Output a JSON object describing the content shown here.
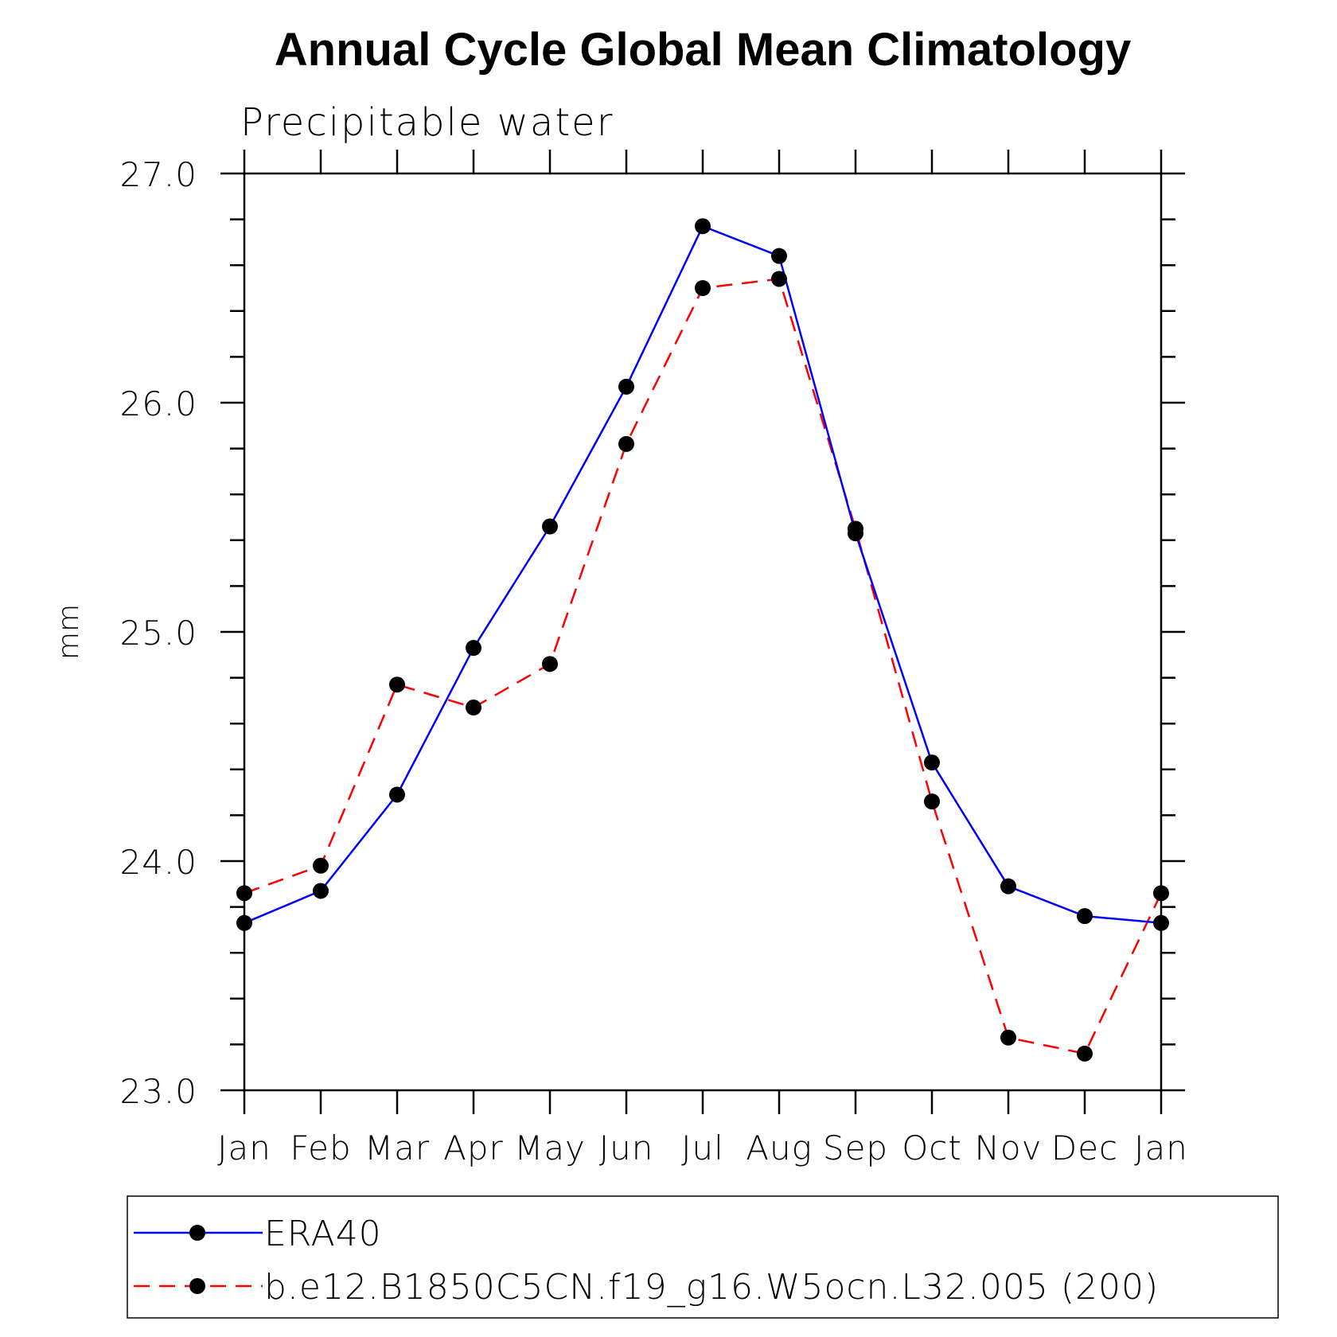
{
  "chart_data": {
    "type": "line",
    "title": "Annual Cycle Global Mean Climatology",
    "subtitle": "Precipitable water",
    "xlabel": "",
    "ylabel": "mm",
    "categories": [
      "Jan",
      "Feb",
      "Mar",
      "Apr",
      "May",
      "Jun",
      "Jul",
      "Aug",
      "Sep",
      "Oct",
      "Nov",
      "Dec",
      "Jan"
    ],
    "ylim": [
      23.0,
      27.0
    ],
    "yticks": [
      "23.0",
      "24.0",
      "25.0",
      "26.0",
      "27.0"
    ],
    "grid": false,
    "legend_position": "bottom",
    "series": [
      {
        "name": "ERA40",
        "color": "#0000ff",
        "dash": "solid",
        "marker": "filled-circle",
        "values": [
          23.73,
          23.87,
          24.29,
          24.93,
          25.46,
          26.07,
          26.77,
          26.64,
          25.43,
          24.43,
          23.89,
          23.76,
          23.73
        ]
      },
      {
        "name": "b.e12.B1850C5CN.f19_g16.W5ocn.L32.005 (200)",
        "color": "#ff0000",
        "dash": "dashed",
        "marker": "filled-circle",
        "values": [
          23.86,
          23.98,
          24.77,
          24.67,
          24.86,
          25.82,
          26.5,
          26.54,
          25.45,
          24.26,
          23.23,
          23.16,
          23.86
        ]
      }
    ]
  }
}
